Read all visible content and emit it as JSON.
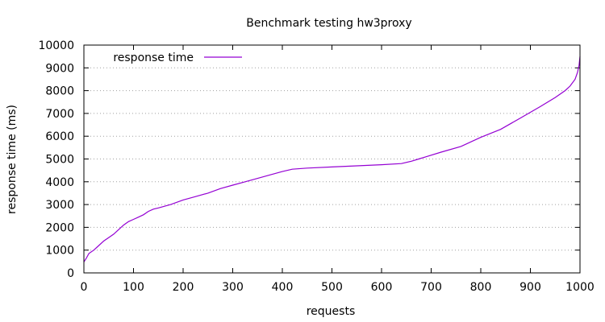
{
  "chart_data": {
    "type": "line",
    "title": "Benchmark testing hw3proxy",
    "xlabel": "requests",
    "ylabel": "response time (ms)",
    "xlim": [
      0,
      1000
    ],
    "ylim": [
      0,
      10000
    ],
    "xticks": [
      0,
      100,
      200,
      300,
      400,
      500,
      600,
      700,
      800,
      900,
      1000
    ],
    "yticks": [
      0,
      1000,
      2000,
      3000,
      4000,
      5000,
      6000,
      7000,
      8000,
      9000,
      10000
    ],
    "grid": "horizontal",
    "legend_position": "top-left",
    "series": [
      {
        "name": "response time",
        "color": "#9400d3",
        "x": [
          0,
          5,
          10,
          20,
          30,
          40,
          50,
          60,
          70,
          80,
          90,
          100,
          110,
          120,
          130,
          140,
          150,
          175,
          200,
          225,
          250,
          275,
          300,
          325,
          350,
          375,
          400,
          420,
          450,
          500,
          550,
          600,
          640,
          660,
          675,
          690,
          720,
          760,
          800,
          840,
          880,
          920,
          950,
          970,
          980,
          990,
          995,
          998,
          1000
        ],
        "y": [
          480,
          650,
          850,
          1000,
          1200,
          1400,
          1550,
          1700,
          1900,
          2100,
          2250,
          2350,
          2450,
          2550,
          2700,
          2800,
          2850,
          3000,
          3200,
          3350,
          3500,
          3700,
          3850,
          4000,
          4150,
          4300,
          4450,
          4550,
          4600,
          4650,
          4700,
          4750,
          4800,
          4900,
          5000,
          5100,
          5300,
          5550,
          5950,
          6300,
          6800,
          7300,
          7700,
          8000,
          8200,
          8500,
          8800,
          9100,
          9500
        ]
      }
    ]
  }
}
